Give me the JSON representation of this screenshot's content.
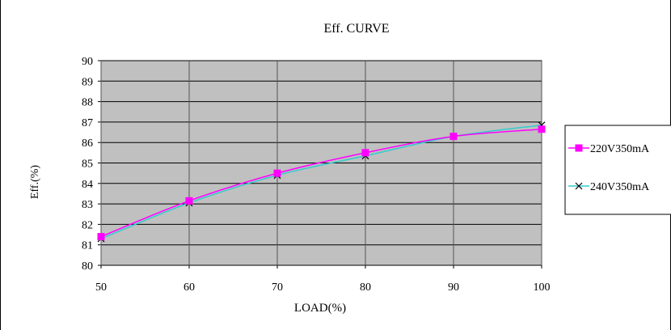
{
  "chart_data": {
    "type": "line",
    "title": "Eff. CURVE",
    "xlabel": "LOAD(%)",
    "ylabel": "Eff.(%)",
    "x": [
      50,
      60,
      70,
      80,
      90,
      100
    ],
    "xlim": [
      50,
      100
    ],
    "ylim": [
      80,
      90
    ],
    "yticks": [
      80,
      81,
      82,
      83,
      84,
      85,
      86,
      87,
      88,
      89,
      90
    ],
    "grid": true,
    "plot_background": "#c0c0c0",
    "legend_position": "right",
    "series": [
      {
        "name": "220V350mA",
        "values": [
          81.4,
          83.15,
          84.5,
          85.5,
          86.3,
          86.65
        ],
        "color": "#ff00ff",
        "marker": "square"
      },
      {
        "name": "240V350mA",
        "values": [
          81.3,
          83.05,
          84.4,
          85.35,
          86.3,
          86.85
        ],
        "color": "#33cccc",
        "marker": "x"
      }
    ]
  }
}
